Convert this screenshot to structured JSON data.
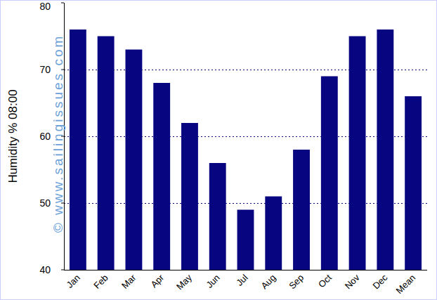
{
  "chart_data": {
    "type": "bar",
    "y_label": "Humidity % 08:00",
    "annotations": [
      "© www.sailingissues.com"
    ],
    "categories": [
      "Jan",
      "Feb",
      "Mar",
      "Apr",
      "May",
      "Jun",
      "Jul",
      "Aug",
      "Sep",
      "Oct",
      "Nov",
      "Dec",
      "Mean"
    ],
    "values": [
      76,
      75,
      73,
      68,
      62,
      56,
      49,
      51,
      58,
      69,
      75,
      76,
      66
    ],
    "color": "#07057f",
    "ylim": [
      40,
      80
    ],
    "yticks": [
      40,
      50,
      60,
      70,
      80
    ],
    "grid": true
  }
}
